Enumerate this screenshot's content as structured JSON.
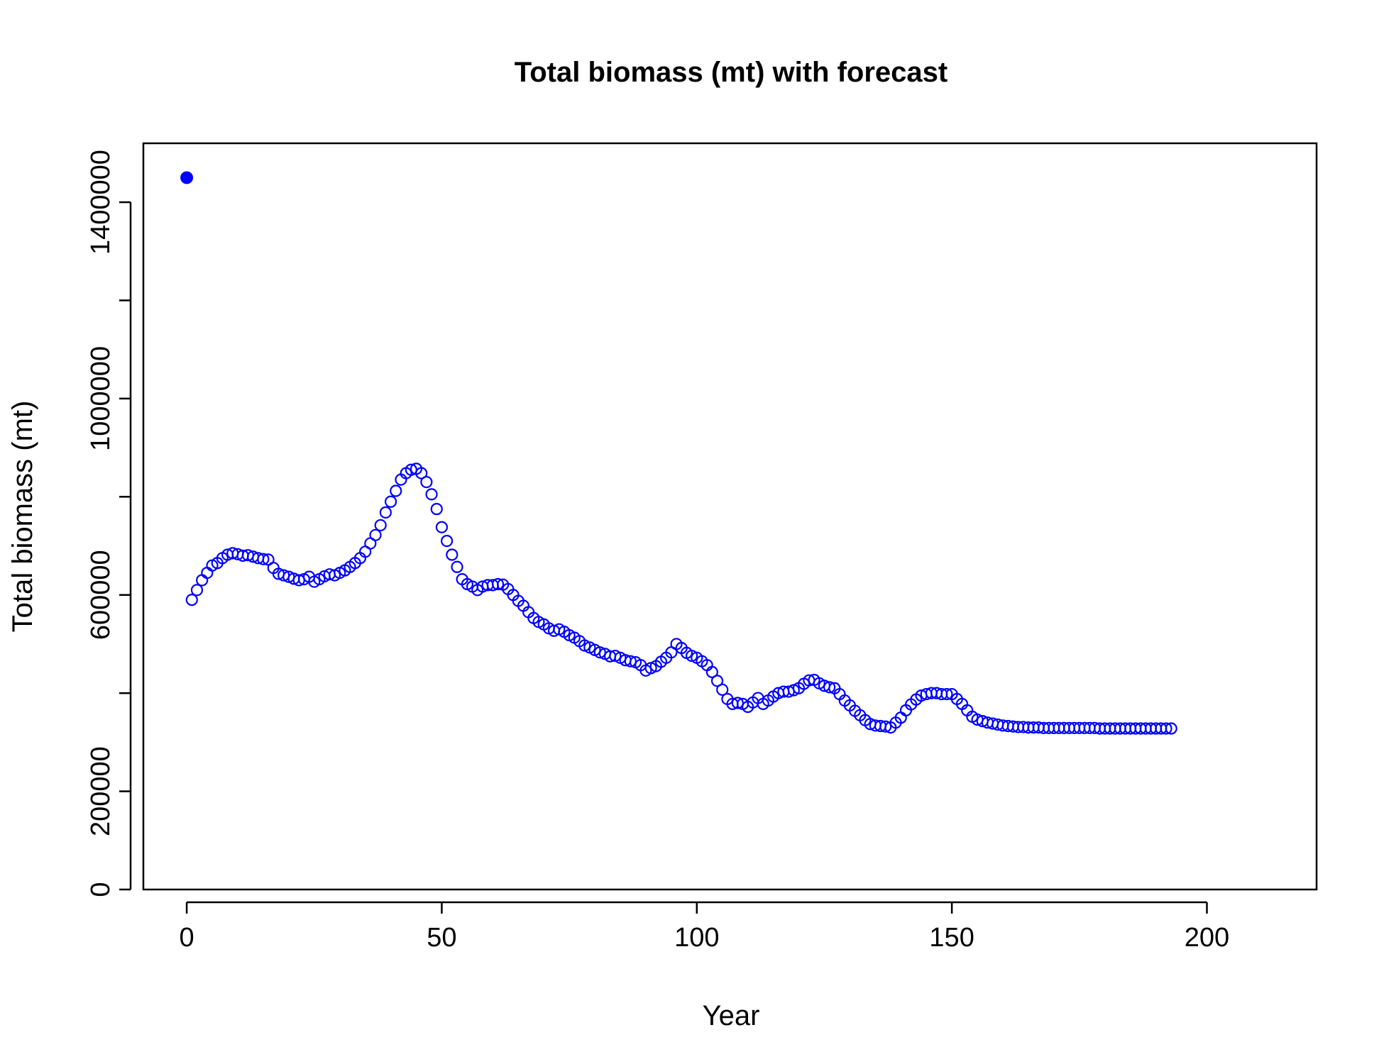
{
  "chart_data": {
    "type": "scatter",
    "title": "Total biomass (mt) with forecast",
    "xlabel": "Year",
    "ylabel": "Total biomass (mt)",
    "xlim": [
      -8.5,
      221.5
    ],
    "ylim": [
      0,
      1520000
    ],
    "xticks": [
      0,
      50,
      100,
      150,
      200
    ],
    "yticks": [
      0,
      200000,
      400000,
      600000,
      800000,
      1000000,
      1200000,
      1400000
    ],
    "ytick_labels_shown": [
      "0",
      "200000",
      "",
      "600000",
      "",
      "1000000",
      "",
      "1400000"
    ],
    "grid": false,
    "legend": "none",
    "point_color": "#0000ff",
    "series": [
      {
        "marker": "filled-circle",
        "x": [
          0
        ],
        "y": [
          1450000
        ]
      },
      {
        "marker": "open-circle",
        "x_start": 1,
        "y": [
          590000,
          610000,
          630000,
          645000,
          660000,
          665000,
          675000,
          682000,
          685000,
          683000,
          680000,
          681000,
          678000,
          675000,
          673000,
          672000,
          655000,
          643000,
          640000,
          637000,
          633000,
          630000,
          632000,
          637000,
          627000,
          632000,
          638000,
          642000,
          640000,
          645000,
          650000,
          657000,
          665000,
          675000,
          688000,
          705000,
          722000,
          742000,
          768000,
          790000,
          812000,
          835000,
          848000,
          855000,
          857000,
          848000,
          830000,
          805000,
          775000,
          738000,
          710000,
          682000,
          657000,
          632000,
          622000,
          617000,
          610000,
          617000,
          620000,
          620000,
          622000,
          621000,
          612000,
          600000,
          588000,
          578000,
          565000,
          553000,
          545000,
          540000,
          532000,
          527000,
          530000,
          525000,
          518000,
          513000,
          506000,
          497000,
          493000,
          488000,
          483000,
          480000,
          475000,
          476000,
          472000,
          467000,
          465000,
          463000,
          457000,
          446000,
          451000,
          455000,
          464000,
          472000,
          483000,
          500000,
          492000,
          482000,
          476000,
          472000,
          465000,
          457000,
          443000,
          425000,
          407000,
          388000,
          378000,
          380000,
          378000,
          372000,
          381000,
          390000,
          378000,
          385000,
          393000,
          400000,
          403000,
          403000,
          406000,
          410000,
          419000,
          426000,
          427000,
          420000,
          415000,
          412000,
          410000,
          398000,
          385000,
          375000,
          364000,
          355000,
          345000,
          337000,
          334000,
          333000,
          332000,
          330000,
          340000,
          350000,
          365000,
          377000,
          387000,
          395000,
          398000,
          400000,
          400000,
          398000,
          398000,
          398000,
          388000,
          378000,
          365000,
          352000,
          346000,
          343000,
          340000,
          338000,
          336000,
          334000,
          333000,
          332000,
          331000,
          331000,
          330000,
          330000,
          330000,
          329000,
          329000,
          329000,
          329000,
          329000,
          329000,
          329000,
          329000,
          329000,
          329000,
          329000,
          328000,
          328000,
          328000,
          328000,
          328000,
          328000,
          328000,
          328000,
          328000,
          328000,
          328000,
          328000,
          328000,
          328000,
          328000
        ]
      }
    ]
  }
}
